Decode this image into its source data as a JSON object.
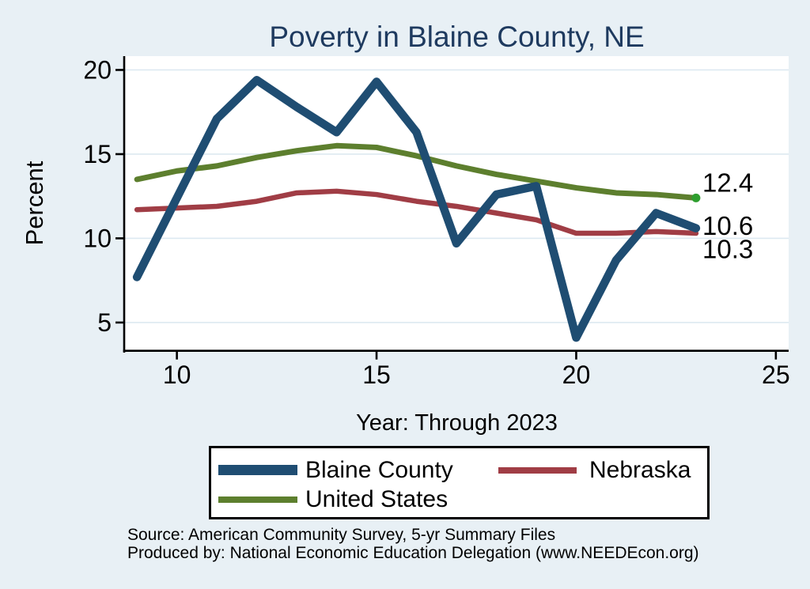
{
  "title": "Poverty in Blaine County, NE",
  "chart_data": {
    "type": "line",
    "title": "Poverty in Blaine County, NE",
    "xlabel": "Year: Through 2023",
    "ylabel": "Percent",
    "x": [
      9,
      10,
      11,
      12,
      13,
      14,
      15,
      16,
      17,
      18,
      19,
      20,
      21,
      22,
      23
    ],
    "x_ticks": [
      10,
      15,
      20,
      25
    ],
    "y_ticks": [
      5,
      10,
      15,
      20
    ],
    "xlim": [
      8.7,
      25.32
    ],
    "ylim": [
      3.26,
      20.82
    ],
    "grid": true,
    "legend_position": "bottom",
    "series": [
      {
        "name": "United States",
        "color": "#5d7f2e",
        "width": 7,
        "values": [
          13.5,
          14.0,
          14.3,
          14.8,
          15.2,
          15.5,
          15.4,
          14.9,
          14.3,
          13.8,
          13.4,
          13.0,
          12.7,
          12.6,
          12.4
        ],
        "end_marker": true,
        "end_marker_color": "#2e9e2e"
      },
      {
        "name": "Nebraska",
        "color": "#a03d45",
        "width": 6.5,
        "values": [
          11.7,
          11.8,
          11.9,
          12.2,
          12.7,
          12.8,
          12.6,
          12.2,
          11.9,
          11.5,
          11.1,
          10.3,
          10.3,
          10.4,
          10.3
        ],
        "end_marker": false
      },
      {
        "name": "Blaine County",
        "color": "#1f4d72",
        "width": 10.5,
        "values": [
          7.7,
          12.4,
          17.1,
          19.4,
          17.8,
          16.3,
          19.3,
          16.3,
          9.7,
          12.6,
          13.1,
          4.1,
          8.7,
          11.5,
          10.6
        ],
        "end_marker": false
      }
    ],
    "end_labels": [
      {
        "text": "12.4",
        "at": 12.4,
        "dy": -8
      },
      {
        "text": "10.6",
        "at": 10.6,
        "dy": 8.5
      },
      {
        "text": "10.3",
        "at": 10.3,
        "dy": 31.5
      }
    ]
  },
  "legend": {
    "items": [
      {
        "label": "Blaine County",
        "color": "#1f4d72"
      },
      {
        "label": "Nebraska",
        "color": "#a03d45"
      },
      {
        "label": "United States",
        "color": "#5d7f2e"
      }
    ]
  },
  "source": {
    "line1": "Source: American Community Survey, 5-yr Summary Files",
    "line2": "Produced by: National Economic Education Delegation (www.NEEDEcon.org)"
  },
  "colors": {
    "background": "#e8f0f5",
    "plot_background": "#ffffff",
    "gridline": "#dde9f1",
    "axis": "#000000",
    "title": "#1e3a5f"
  }
}
